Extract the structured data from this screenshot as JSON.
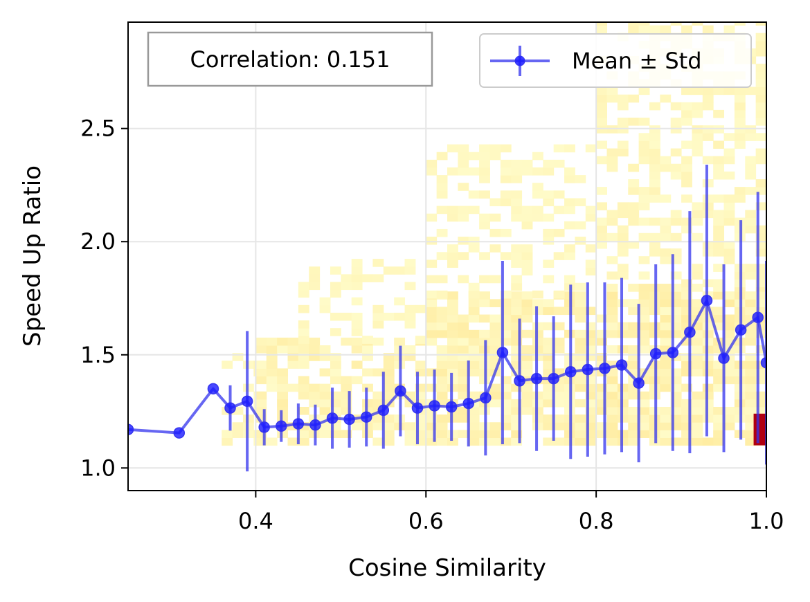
{
  "chart_data": {
    "type": "scatter",
    "title": "",
    "xlabel": "Cosine Similarity",
    "ylabel": "Speed Up Ratio",
    "xlim": [
      0.25,
      1.0
    ],
    "ylim": [
      0.9,
      2.97
    ],
    "xticks": [
      {
        "value": 0.4,
        "label": "0.4"
      },
      {
        "value": 0.6,
        "label": "0.6"
      },
      {
        "value": 0.8,
        "label": "0.8"
      },
      {
        "value": 1.0,
        "label": "1.0"
      }
    ],
    "yticks": [
      {
        "value": 1.0,
        "label": "1.0"
      },
      {
        "value": 1.5,
        "label": "1.5"
      },
      {
        "value": 2.0,
        "label": "2.0"
      },
      {
        "value": 2.5,
        "label": "2.5"
      }
    ],
    "grid": true,
    "legend_placement": "top-right",
    "colors": {
      "series": "#3333ee",
      "heat_low": "#fffbc8",
      "heat_mid": "#fde8a0",
      "heat_high": "#b00010",
      "grid": "#e6e6e6",
      "annotation_border": "#999999",
      "legend_border": "#cccccc"
    },
    "annotation": {
      "text": "Correlation: 0.151",
      "placement": "top-left"
    },
    "series": [
      {
        "name": "Mean ± Std",
        "x": [
          0.25,
          0.31,
          0.35,
          0.37,
          0.39,
          0.41,
          0.43,
          0.45,
          0.47,
          0.49,
          0.51,
          0.53,
          0.55,
          0.57,
          0.59,
          0.61,
          0.63,
          0.65,
          0.67,
          0.69,
          0.71,
          0.73,
          0.75,
          0.77,
          0.79,
          0.81,
          0.83,
          0.85,
          0.87,
          0.89,
          0.91,
          0.93,
          0.95,
          0.97,
          0.99,
          1.0
        ],
        "y": [
          1.17,
          1.155,
          1.35,
          1.265,
          1.295,
          1.18,
          1.185,
          1.195,
          1.19,
          1.22,
          1.215,
          1.225,
          1.255,
          1.34,
          1.265,
          1.275,
          1.27,
          1.285,
          1.31,
          1.51,
          1.385,
          1.395,
          1.395,
          1.425,
          1.435,
          1.44,
          1.455,
          1.375,
          1.505,
          1.51,
          1.6,
          1.74,
          1.485,
          1.61,
          1.665,
          1.465
        ],
        "std": [
          0,
          0,
          0,
          0.1,
          0.31,
          0.08,
          0.07,
          0.09,
          0.09,
          0.135,
          0.125,
          0.13,
          0.17,
          0.2,
          0.16,
          0.16,
          0.15,
          0.19,
          0.255,
          0.405,
          0.275,
          0.32,
          0.275,
          0.385,
          0.385,
          0.38,
          0.385,
          0.35,
          0.395,
          0.435,
          0.535,
          0.6,
          0.415,
          0.485,
          0.555,
          0.45
        ]
      }
    ],
    "heatmap": {
      "description_cells": [
        {
          "x": [
            0.36,
            0.4
          ],
          "y": [
            1.1,
            1.5
          ],
          "level": 0.25
        },
        {
          "x": [
            0.4,
            0.6
          ],
          "y": [
            1.1,
            1.55
          ],
          "level": 0.45
        },
        {
          "x": [
            0.45,
            0.6
          ],
          "y": [
            1.55,
            1.9
          ],
          "level": 0.2
        },
        {
          "x": [
            0.6,
            0.8
          ],
          "y": [
            1.1,
            1.75
          ],
          "level": 0.5
        },
        {
          "x": [
            0.6,
            0.8
          ],
          "y": [
            1.75,
            2.4
          ],
          "level": 0.2
        },
        {
          "x": [
            0.8,
            1.0
          ],
          "y": [
            1.1,
            1.8
          ],
          "level": 0.55
        },
        {
          "x": [
            0.8,
            1.0
          ],
          "y": [
            1.8,
            2.97
          ],
          "level": 0.25
        },
        {
          "x": [
            0.985,
            1.0
          ],
          "y": [
            1.1,
            1.24
          ],
          "level": 1.0
        }
      ]
    }
  }
}
